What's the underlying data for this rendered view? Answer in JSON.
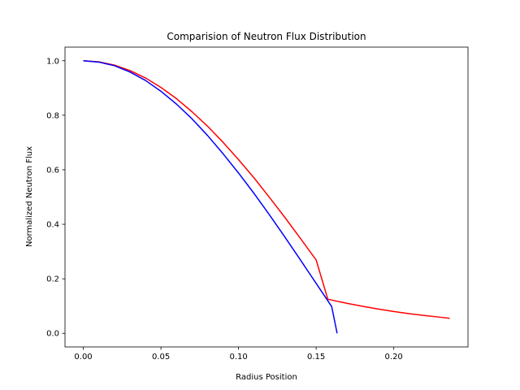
{
  "chart_data": {
    "type": "line",
    "title": "Comparision of Neutron Flux Distribution",
    "xlabel": "Radius Position",
    "ylabel": "Normalized Neutron Flux",
    "xlim": [
      -0.0118,
      0.2478
    ],
    "ylim": [
      -0.05,
      1.05
    ],
    "xticks": [
      0.0,
      0.05,
      0.1,
      0.15,
      0.2
    ],
    "xtick_labels": [
      "0.00",
      "0.05",
      "0.10",
      "0.15",
      "0.20"
    ],
    "yticks": [
      0.0,
      0.2,
      0.4,
      0.6,
      0.8,
      1.0
    ],
    "ytick_labels": [
      "0.0",
      "0.2",
      "0.4",
      "0.6",
      "0.8",
      "1.0"
    ],
    "grid": false,
    "series": [
      {
        "color": "#ff0000",
        "points": [
          [
            0.0,
            1.0
          ],
          [
            0.01,
            0.996
          ],
          [
            0.02,
            0.984
          ],
          [
            0.03,
            0.964
          ],
          [
            0.04,
            0.937
          ],
          [
            0.05,
            0.902
          ],
          [
            0.06,
            0.861
          ],
          [
            0.07,
            0.813
          ],
          [
            0.08,
            0.76
          ],
          [
            0.09,
            0.701
          ],
          [
            0.1,
            0.637
          ],
          [
            0.11,
            0.57
          ],
          [
            0.12,
            0.498
          ],
          [
            0.13,
            0.424
          ],
          [
            0.14,
            0.347
          ],
          [
            0.15,
            0.269
          ],
          [
            0.1575,
            0.125
          ],
          [
            0.17,
            0.11
          ],
          [
            0.18,
            0.099
          ],
          [
            0.19,
            0.089
          ],
          [
            0.2,
            0.08
          ],
          [
            0.21,
            0.072
          ],
          [
            0.22,
            0.065
          ],
          [
            0.23,
            0.059
          ],
          [
            0.236,
            0.055
          ]
        ]
      },
      {
        "color": "#0000ff",
        "points": [
          [
            0.0,
            1.0
          ],
          [
            0.01,
            0.995
          ],
          [
            0.02,
            0.982
          ],
          [
            0.03,
            0.959
          ],
          [
            0.04,
            0.928
          ],
          [
            0.05,
            0.888
          ],
          [
            0.06,
            0.841
          ],
          [
            0.07,
            0.787
          ],
          [
            0.08,
            0.726
          ],
          [
            0.09,
            0.659
          ],
          [
            0.1,
            0.588
          ],
          [
            0.11,
            0.513
          ],
          [
            0.12,
            0.434
          ],
          [
            0.13,
            0.352
          ],
          [
            0.14,
            0.268
          ],
          [
            0.15,
            0.183
          ],
          [
            0.16,
            0.098
          ],
          [
            0.1635,
            0.0
          ]
        ]
      }
    ]
  }
}
